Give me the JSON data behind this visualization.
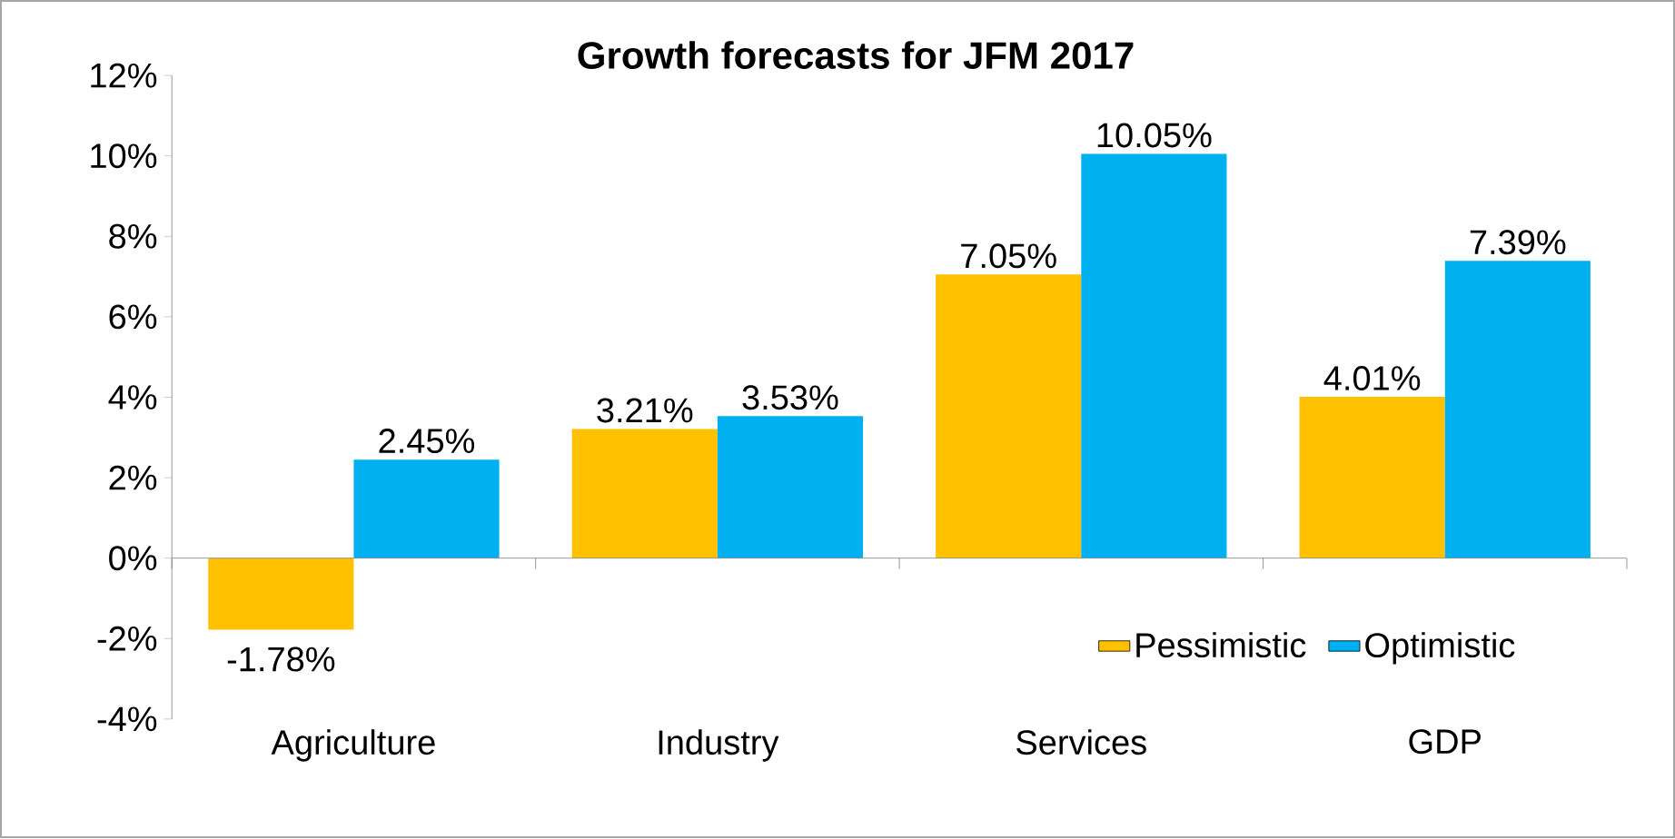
{
  "chart_data": {
    "type": "bar",
    "title": "Growth forecasts for JFM 2017",
    "categories": [
      "Agriculture",
      "Industry",
      "Services",
      "GDP"
    ],
    "series": [
      {
        "name": "Pessimistic",
        "color": "#ffc000",
        "values": [
          -1.78,
          3.21,
          7.05,
          4.01
        ],
        "value_labels": [
          "-1.78%",
          "3.21%",
          "7.05%",
          "4.01%"
        ]
      },
      {
        "name": "Optimistic",
        "color": "#00b0f0",
        "values": [
          2.45,
          3.53,
          10.05,
          7.39
        ],
        "value_labels": [
          "2.45%",
          "3.53%",
          "10.05%",
          "7.39%"
        ]
      }
    ],
    "ylim": [
      -4,
      12
    ],
    "yticks": [
      {
        "value": -4,
        "label": "-4%"
      },
      {
        "value": -2,
        "label": "-2%"
      },
      {
        "value": 0,
        "label": "0%"
      },
      {
        "value": 2,
        "label": "2%"
      },
      {
        "value": 4,
        "label": "4%"
      },
      {
        "value": 6,
        "label": "6%"
      },
      {
        "value": 8,
        "label": "8%"
      },
      {
        "value": 10,
        "label": "10%"
      },
      {
        "value": 12,
        "label": "12%"
      }
    ],
    "legend": "bottom right"
  }
}
